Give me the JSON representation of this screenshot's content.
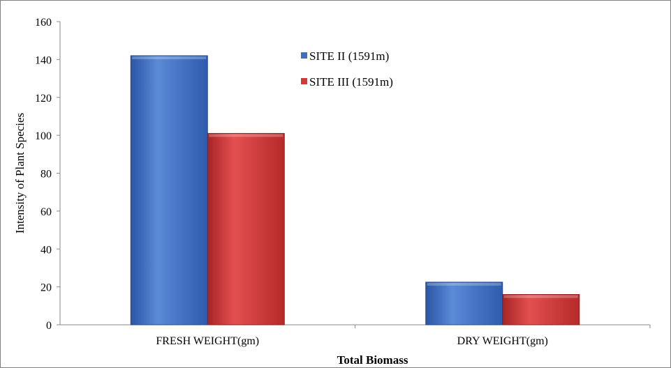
{
  "chart_data": {
    "type": "bar",
    "title": "",
    "xlabel": "Total Biomass",
    "ylabel": "Intensity of Plant Species",
    "ylim": [
      0,
      160
    ],
    "yticks": [
      0,
      20,
      40,
      60,
      80,
      100,
      120,
      140,
      160
    ],
    "categories": [
      "FRESH WEIGHT(gm)",
      "DRY WEIGHT(gm)"
    ],
    "series": [
      {
        "name": "SITE II (1591m)",
        "color": "#3f6fbf",
        "values": [
          142,
          22.5
        ]
      },
      {
        "name": "SITE III (1591m)",
        "color": "#d23a3a",
        "values": [
          101,
          16
        ]
      }
    ],
    "legend_position": "top-center",
    "grid": false
  }
}
